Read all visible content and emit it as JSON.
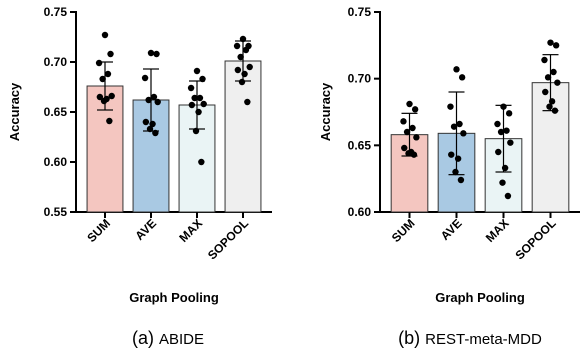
{
  "chart_data": [
    {
      "type": "bar",
      "caption_prefix": "(a)",
      "caption_name": "ABIDE",
      "xlabel": "Graph Pooling",
      "ylabel": "Accuracy",
      "ylim": [
        0.55,
        0.75
      ],
      "yticks": [
        0.55,
        0.6,
        0.65,
        0.7,
        0.75
      ],
      "ytick_labels": [
        "0.55",
        "0.60",
        "0.65",
        "0.70",
        "0.75"
      ],
      "categories": [
        "SUM",
        "AVE",
        "MAX",
        "SOPOOL"
      ],
      "values": [
        0.676,
        0.662,
        0.657,
        0.701
      ],
      "errors": [
        0.024,
        0.031,
        0.024,
        0.02
      ],
      "colors": [
        "#f4c6c0",
        "#a9c9e3",
        "#eaf4f5",
        "#efefef"
      ],
      "points": [
        [
          0.727,
          0.708,
          0.699,
          0.688,
          0.683,
          0.666,
          0.665,
          0.663,
          0.661,
          0.641
        ],
        [
          0.709,
          0.708,
          0.684,
          0.665,
          0.662,
          0.66,
          0.64,
          0.638,
          0.633,
          0.629
        ],
        [
          0.691,
          0.683,
          0.674,
          0.664,
          0.664,
          0.658,
          0.657,
          0.65,
          0.631,
          0.6
        ],
        [
          0.723,
          0.716,
          0.716,
          0.712,
          0.705,
          0.695,
          0.692,
          0.688,
          0.68,
          0.66
        ]
      ]
    },
    {
      "type": "bar",
      "caption_prefix": "(b)",
      "caption_name": "REST-meta-MDD",
      "xlabel": "Graph Pooling",
      "ylabel": "Accuracy",
      "ylim": [
        0.6,
        0.75
      ],
      "yticks": [
        0.6,
        0.65,
        0.7,
        0.75
      ],
      "ytick_labels": [
        "0.60",
        "0.65",
        "0.70",
        "0.75"
      ],
      "categories": [
        "SUM",
        "AVE",
        "MAX",
        "SOPOOL"
      ],
      "values": [
        0.658,
        0.659,
        0.655,
        0.697
      ],
      "errors": [
        0.016,
        0.031,
        0.025,
        0.021
      ],
      "colors": [
        "#f4c6c0",
        "#a9c9e3",
        "#eaf4f5",
        "#efefef"
      ],
      "points": [
        [
          0.681,
          0.677,
          0.668,
          0.663,
          0.66,
          0.656,
          0.648,
          0.645,
          0.644,
          0.643
        ],
        [
          0.707,
          0.701,
          0.679,
          0.666,
          0.664,
          0.659,
          0.643,
          0.64,
          0.63,
          0.624
        ],
        [
          0.679,
          0.674,
          0.666,
          0.661,
          0.66,
          0.652,
          0.645,
          0.633,
          0.622,
          0.612
        ],
        [
          0.727,
          0.725,
          0.714,
          0.705,
          0.701,
          0.697,
          0.69,
          0.683,
          0.679,
          0.676
        ]
      ]
    }
  ]
}
